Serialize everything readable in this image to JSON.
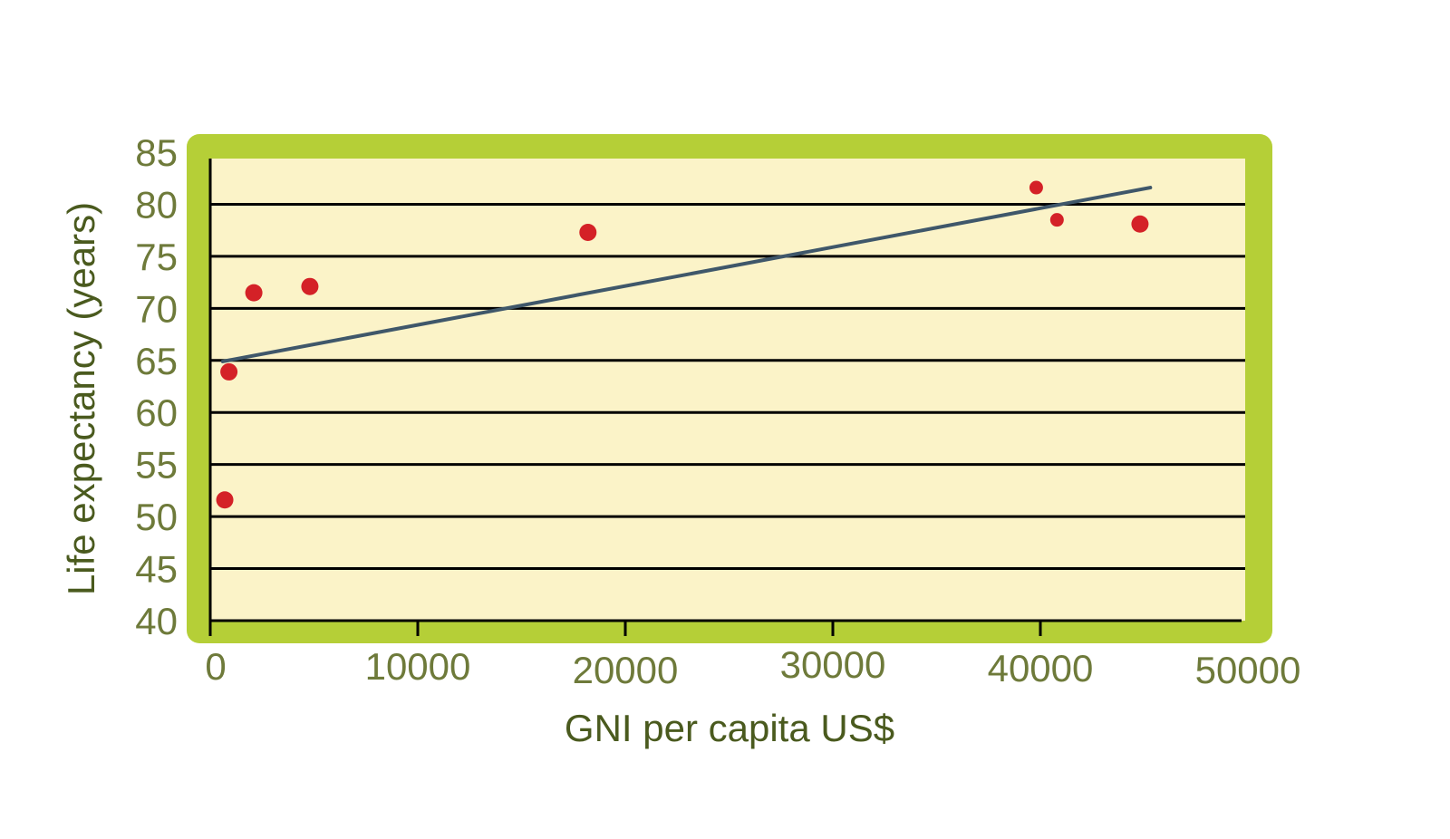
{
  "colors": {
    "frame": "#b5cf37",
    "plot_bg": "#fbf3c8",
    "grid": "#000000",
    "axis": "#000000",
    "tick_text": "#6e7a3a",
    "label_text": "#4a5a1e",
    "points": "#d42127",
    "trendline": "#3f576a"
  },
  "chart_data": {
    "type": "scatter",
    "xlabel": "GNI per capita US$",
    "ylabel": "Life expectancy (years)",
    "xlim": [
      0,
      50000
    ],
    "ylim": [
      40,
      85
    ],
    "xticks": [
      0,
      10000,
      20000,
      30000,
      40000,
      50000
    ],
    "yticks": [
      40,
      45,
      50,
      55,
      60,
      65,
      70,
      75,
      80,
      85
    ],
    "grid": "horizontal",
    "points": [
      {
        "x": 700,
        "y": 51.6
      },
      {
        "x": 900,
        "y": 63.9
      },
      {
        "x": 2100,
        "y": 71.5
      },
      {
        "x": 4800,
        "y": 72.1
      },
      {
        "x": 18200,
        "y": 77.3
      },
      {
        "x": 39800,
        "y": 81.6
      },
      {
        "x": 40800,
        "y": 78.5
      },
      {
        "x": 44800,
        "y": 78.1
      }
    ],
    "trendline": {
      "x": [
        600,
        45300
      ],
      "y": [
        64.9,
        81.6
      ]
    }
  }
}
